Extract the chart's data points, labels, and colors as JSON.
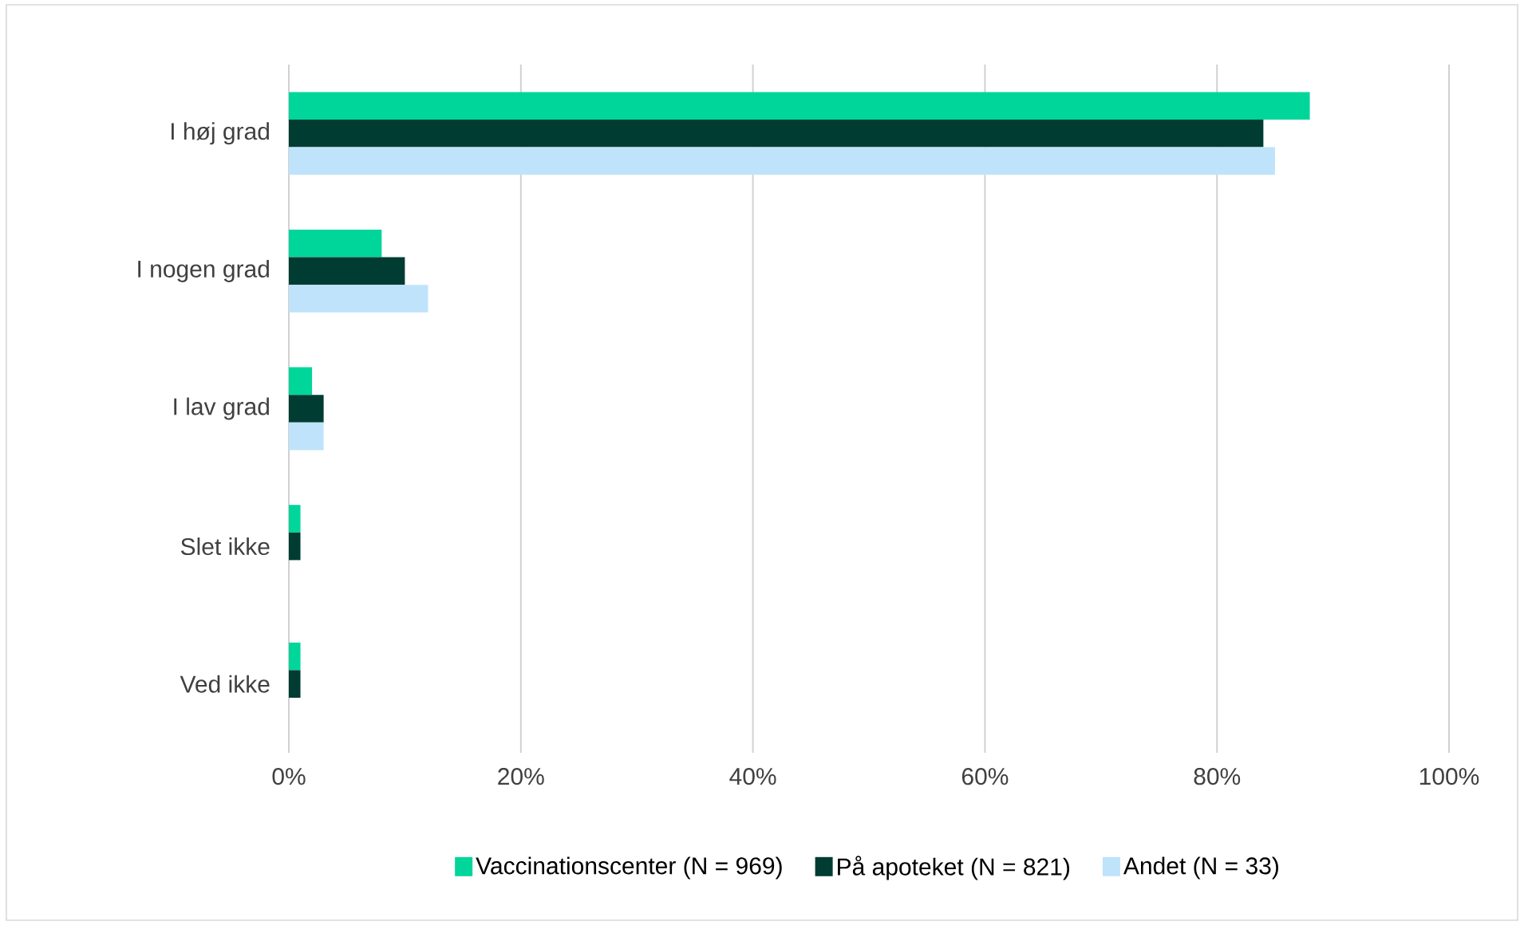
{
  "chart_data": {
    "type": "bar",
    "orientation": "horizontal",
    "categories": [
      "I høj grad",
      "I nogen grad",
      "I lav grad",
      "Slet ikke",
      "Ved ikke"
    ],
    "series": [
      {
        "name": "Vaccinationscenter (N = 969)",
        "color": "#00d59a",
        "values": [
          88,
          8,
          2,
          1,
          1
        ]
      },
      {
        "name": "På apoteket (N = 821)",
        "color": "#003c32",
        "values": [
          84,
          10,
          3,
          1,
          1
        ]
      },
      {
        "name": "Andet (N = 33)",
        "color": "#bfe3fa",
        "values": [
          85,
          12,
          3,
          0,
          0
        ]
      }
    ],
    "xlim": [
      0,
      100
    ],
    "xticks": [
      {
        "value": 0,
        "label": "0%"
      },
      {
        "value": 20,
        "label": "20%"
      },
      {
        "value": 40,
        "label": "40%"
      },
      {
        "value": 60,
        "label": "60%"
      },
      {
        "value": 80,
        "label": "80%"
      },
      {
        "value": 100,
        "label": "100%"
      }
    ],
    "grid": "x",
    "legend": "bottom"
  }
}
